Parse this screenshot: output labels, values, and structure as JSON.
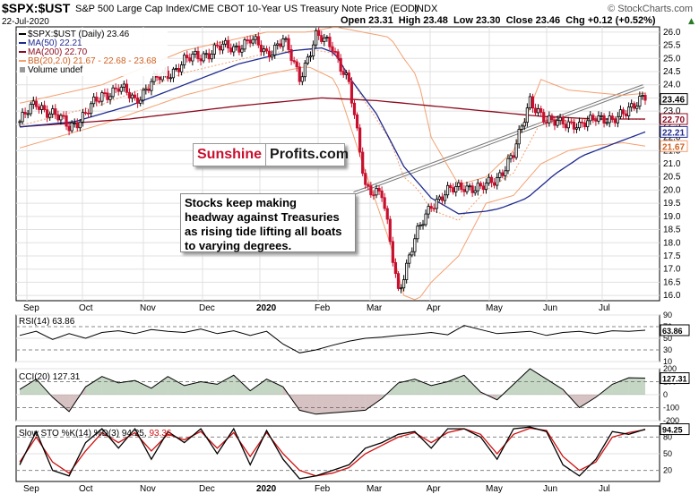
{
  "header": {
    "symbol": "$SPX:$UST",
    "title": "S&P 500 Large Cap Index/CME CBOT 10-Year US Treasury Note Price (EOD)",
    "exchange": "INDX",
    "copyright": "© StockCharts.com",
    "date": "22-Jul-2020",
    "ohlc": "Open 23.31  High 23.48  Low 23.30  Close 23.46  Chg +0.12 (+0.52%)",
    "ohlc_arrow": "▲"
  },
  "legend": {
    "main": "$SPX:$UST (Daily) 23.46",
    "ma50": "MA(50) 22.21",
    "ma200": "MA(200) 22.70",
    "bb": "BB(20,2.0) 21.67 - 22.68 - 23.68",
    "volume": "Volume undef"
  },
  "colors": {
    "up": "#000000",
    "down": "#c8102e",
    "ma50": "#1f2a8f",
    "ma200": "#8b0a1e",
    "bb": "#f4a070",
    "grid": "#e0e0e0",
    "positive_fill": "#5a8a5a",
    "negative_fill": "#8a5050",
    "slow_k": "#000000",
    "slow_d": "#d01010"
  },
  "logo": {
    "part1": "Sunshine",
    "part2": "Profits.com"
  },
  "annotation": [
    "Stocks keep making",
    "headway against Treasuries",
    "as rising tide lifting all boats",
    "to varying degrees."
  ],
  "axis_labels": {
    "months": [
      "Sep",
      "Oct",
      "Nov",
      "Dec",
      "2020",
      "Feb",
      "Mar",
      "Apr",
      "May",
      "Jun",
      "Jul"
    ],
    "price_ticks": [
      "26.0",
      "25.5",
      "25.0",
      "24.5",
      "24.0",
      "23.5",
      "23.0",
      "22.5",
      "22.0",
      "21.5",
      "21.0",
      "20.5",
      "20.0",
      "19.5",
      "19.0",
      "18.5",
      "18.0",
      "17.5",
      "17.0",
      "16.5",
      "16.0"
    ],
    "price_tags": [
      "23.46",
      "22.70",
      "22.21",
      "21.67"
    ],
    "rsi_ticks": [
      "90",
      "70",
      "50",
      "30",
      "10"
    ],
    "cci_ticks": [
      "200",
      "100",
      "0",
      "-100",
      "-200"
    ],
    "sto_ticks": [
      "80",
      "50",
      "20"
    ]
  },
  "indicators": {
    "rsi": {
      "label": "RSI(14) 63.86",
      "tag": "63.86"
    },
    "cci": {
      "label": "CCI(20) 127.31",
      "tag": "127.31"
    },
    "sto": {
      "label_k": "Slow STO %K(14) %D(3) 94.25, ",
      "label_d": "93.36",
      "tag": "94.25"
    }
  },
  "chart_data": {
    "type": "line",
    "title": "$SPX:$UST",
    "ylim": [
      15.8,
      26.2
    ],
    "months": [
      "Sep",
      "Oct",
      "Nov",
      "Dec",
      "2020",
      "Feb",
      "Mar",
      "Apr",
      "May",
      "Jun",
      "Jul"
    ],
    "series": [
      {
        "name": "$SPX:$UST",
        "x": [
          0,
          6,
          12,
          18,
          24,
          30,
          36,
          42,
          48,
          54,
          60,
          66,
          72,
          78,
          84,
          90,
          96,
          102,
          108,
          114,
          120,
          126,
          132,
          138,
          144,
          150,
          156,
          162,
          168,
          174,
          180,
          186,
          192,
          198,
          204,
          210,
          216,
          222,
          228
        ],
        "values": [
          22.6,
          23.3,
          22.9,
          22.4,
          22.9,
          23.6,
          23.9,
          23.4,
          24.1,
          24.4,
          24.9,
          25.1,
          25.4,
          25.4,
          25.7,
          25.2,
          25.7,
          24.3,
          25.8,
          25.5,
          24.0,
          20.2,
          19.8,
          16.2,
          18.1,
          19.5,
          19.9,
          20.2,
          20.0,
          20.5,
          21.3,
          23.5,
          22.5,
          22.7,
          22.3,
          22.9,
          22.5,
          23.2,
          23.46
        ]
      },
      {
        "name": "MA(50)",
        "x": [
          0,
          20,
          40,
          60,
          80,
          100,
          110,
          115,
          120,
          130,
          140,
          150,
          160,
          170,
          175,
          185,
          195,
          205,
          215,
          228
        ],
        "values": [
          22.4,
          22.6,
          23.2,
          24.0,
          24.8,
          25.3,
          25.4,
          25.2,
          24.3,
          22.9,
          20.9,
          19.7,
          19.1,
          19.2,
          19.3,
          19.7,
          20.6,
          21.3,
          21.7,
          22.21
        ]
      },
      {
        "name": "MA(200)",
        "x": [
          0,
          40,
          80,
          110,
          130,
          150,
          170,
          190,
          210,
          228
        ],
        "values": [
          22.4,
          22.7,
          23.2,
          23.5,
          23.4,
          23.2,
          23.0,
          22.8,
          22.7,
          22.7
        ]
      },
      {
        "name": "BB upper",
        "x": [
          0,
          30,
          60,
          90,
          105,
          115,
          125,
          135,
          140,
          145,
          150,
          160,
          170,
          180,
          190,
          200,
          210,
          220,
          228
        ],
        "values": [
          23.3,
          24.0,
          25.3,
          26.0,
          26.0,
          26.2,
          26.0,
          25.8,
          25.0,
          24.3,
          22.0,
          20.2,
          20.5,
          21.5,
          24.2,
          23.8,
          23.7,
          23.6,
          23.68
        ]
      },
      {
        "name": "BB lower",
        "x": [
          0,
          30,
          60,
          90,
          105,
          115,
          125,
          135,
          140,
          145,
          150,
          160,
          170,
          180,
          190,
          200,
          210,
          220,
          228
        ],
        "values": [
          21.6,
          22.5,
          23.6,
          24.4,
          24.7,
          24.2,
          21.0,
          18.0,
          16.0,
          15.8,
          16.5,
          17.5,
          19.5,
          19.8,
          21.0,
          21.5,
          21.7,
          21.8,
          21.67
        ]
      }
    ],
    "annotations": [
      "Stocks keep making headway against Treasuries as rising tide lifting all boats to varying degrees."
    ],
    "rsi": {
      "ylim": [
        10,
        90
      ],
      "values": [
        55,
        62,
        48,
        58,
        50,
        60,
        63,
        58,
        65,
        62,
        60,
        66,
        58,
        63,
        55,
        62,
        40,
        25,
        30,
        38,
        45,
        50,
        52,
        55,
        57,
        60,
        56,
        72,
        65,
        58,
        60,
        62,
        55,
        60,
        62,
        58,
        63,
        62,
        63.86
      ]
    },
    "cci": {
      "ylim": [
        -200,
        200
      ],
      "values": [
        40,
        120,
        -20,
        -130,
        60,
        140,
        90,
        110,
        50,
        140,
        70,
        100,
        80,
        150,
        30,
        120,
        60,
        -120,
        -150,
        -140,
        -130,
        -120,
        -30,
        90,
        120,
        70,
        100,
        150,
        20,
        -40,
        80,
        200,
        120,
        40,
        -100,
        -20,
        80,
        130,
        127.31
      ]
    },
    "sto": {
      "ylim": [
        0,
        100
      ],
      "k": [
        30,
        90,
        20,
        10,
        70,
        95,
        60,
        95,
        40,
        90,
        70,
        95,
        50,
        95,
        30,
        92,
        40,
        5,
        10,
        20,
        30,
        60,
        70,
        85,
        90,
        60,
        95,
        95,
        80,
        40,
        95,
        98,
        90,
        30,
        10,
        40,
        90,
        85,
        94.25
      ],
      "d": [
        35,
        80,
        35,
        15,
        55,
        88,
        70,
        88,
        55,
        85,
        75,
        90,
        60,
        88,
        45,
        88,
        50,
        20,
        10,
        15,
        25,
        50,
        65,
        80,
        88,
        70,
        88,
        95,
        85,
        50,
        85,
        96,
        92,
        45,
        20,
        35,
        80,
        88,
        93.36
      ]
    }
  }
}
